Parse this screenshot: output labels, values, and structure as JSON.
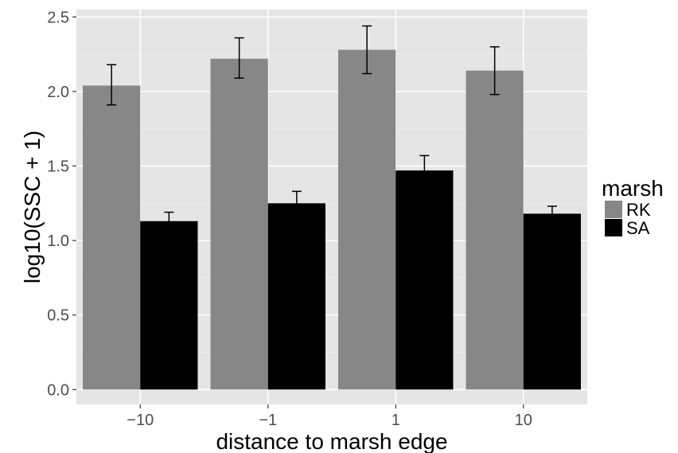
{
  "chart_data": {
    "type": "bar",
    "xlabel": "distance to marsh edge",
    "ylabel": "log10(SSC + 1)",
    "categories": [
      "−10",
      "−1",
      "1",
      "10"
    ],
    "ylim": [
      -0.1,
      2.55
    ],
    "yticks": [
      "0.0",
      "0.5",
      "1.0",
      "1.5",
      "2.0",
      "2.5"
    ],
    "grid": true,
    "legend_title": "marsh",
    "legend_position": "right",
    "series": [
      {
        "name": "RK",
        "color": "#878787",
        "values": [
          2.04,
          2.22,
          2.28,
          2.14
        ],
        "err_low": [
          1.91,
          2.09,
          2.12,
          1.98
        ],
        "err_high": [
          2.18,
          2.36,
          2.44,
          2.3
        ]
      },
      {
        "name": "SA",
        "color": "#000000",
        "values": [
          1.13,
          1.25,
          1.47,
          1.18
        ],
        "err_low": [
          1.08,
          1.15,
          1.38,
          1.13
        ],
        "err_high": [
          1.19,
          1.33,
          1.57,
          1.23
        ]
      }
    ]
  }
}
